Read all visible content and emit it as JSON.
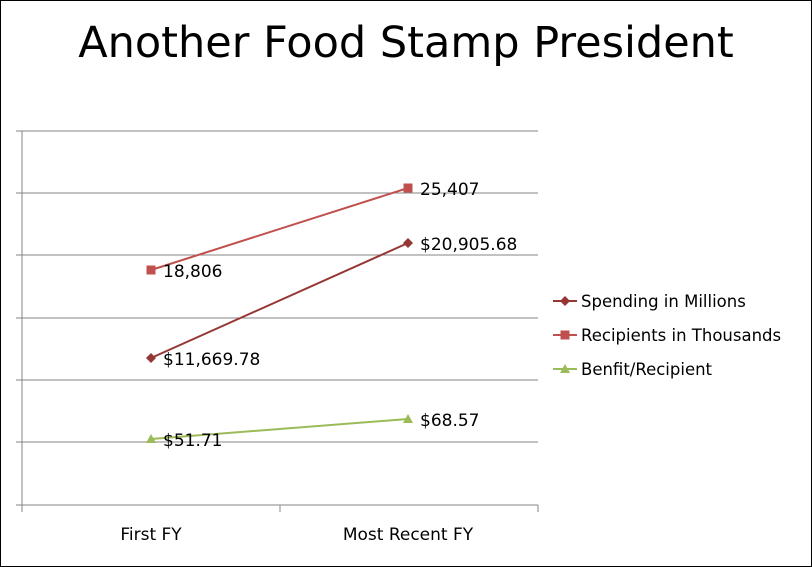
{
  "chart_data": {
    "type": "line",
    "title": "Another Food Stamp President",
    "categories": [
      "First FY",
      "Most Recent FY"
    ],
    "grid": true,
    "legend_position": "right",
    "y_axis_labels_shown": false,
    "series": [
      {
        "name": "Spending in Millions",
        "values": [
          11669.78,
          20905.68
        ],
        "labels": [
          "$11,669.78",
          "$20,905.68"
        ],
        "color": "#953735",
        "marker": "diamond"
      },
      {
        "name": "Recipients in Thousands",
        "values": [
          18806,
          25407
        ],
        "labels": [
          "18,806",
          "25,407"
        ],
        "color": "#C0504D",
        "marker": "square"
      },
      {
        "name": "Benfit/Recipient",
        "values": [
          51.71,
          68.57
        ],
        "labels": [
          "$51.71",
          "$68.57"
        ],
        "color": "#9BBB59",
        "marker": "triangle"
      }
    ]
  }
}
